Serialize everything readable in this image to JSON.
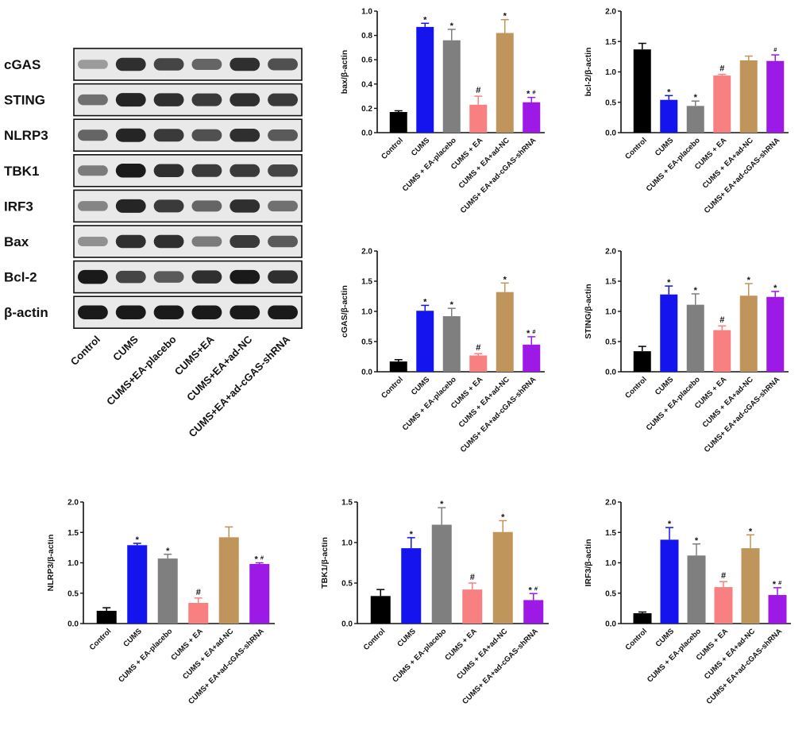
{
  "colors": {
    "Control": "#000000",
    "CUMS": "#1414ee",
    "CUMS+EA-placebo": "#7f7f7f",
    "CUMS+EA": "#f98080",
    "CUMS+EA+ad-NC": "#c0955c",
    "CUMS+EA+ad-cGAS-shRNA": "#9c19e6"
  },
  "blot": {
    "rows": [
      "cGAS",
      "STING",
      "NLRP3",
      "TBK1",
      "IRF3",
      "Bax",
      "Bcl-2",
      "β-actin"
    ],
    "lanes": [
      "Control",
      "CUMS",
      "CUMS+EA-placebo",
      "CUMS+EA",
      "CUMS+EA+ad-NC",
      "CUMS+EA+ad-cGAS-shRNA"
    ],
    "band_intensity": [
      [
        0.35,
        0.85,
        0.75,
        0.6,
        0.85,
        0.7
      ],
      [
        0.55,
        0.9,
        0.85,
        0.8,
        0.85,
        0.8
      ],
      [
        0.6,
        0.9,
        0.8,
        0.7,
        0.85,
        0.65
      ],
      [
        0.5,
        0.95,
        0.85,
        0.8,
        0.8,
        0.75
      ],
      [
        0.45,
        0.9,
        0.8,
        0.6,
        0.85,
        0.55
      ],
      [
        0.4,
        0.85,
        0.85,
        0.5,
        0.8,
        0.65
      ],
      [
        0.95,
        0.75,
        0.65,
        0.85,
        0.95,
        0.85
      ],
      [
        0.95,
        0.95,
        0.95,
        0.95,
        0.95,
        0.95
      ]
    ]
  },
  "chart_data": [
    {
      "type": "bar",
      "id": "bax",
      "ylabel": "bax/β-actin",
      "ylim": [
        0,
        1.0
      ],
      "yticks": [
        "0.0",
        "0.2",
        "0.4",
        "0.6",
        "0.8",
        "1.0"
      ],
      "categories": [
        "Control",
        "CUMS",
        "CUMS + EA-placebo",
        "CUMS + EA",
        "CUMS + EA+ad-NC",
        "CUMS+ EA+ad-cGAS-shRNA"
      ],
      "values": [
        0.17,
        0.87,
        0.76,
        0.23,
        0.82,
        0.25
      ],
      "errors": [
        0.01,
        0.03,
        0.09,
        0.07,
        0.11,
        0.04
      ],
      "annotations": [
        "",
        "*",
        "*",
        "#",
        "*",
        "*#"
      ]
    },
    {
      "type": "bar",
      "id": "bcl2",
      "ylabel": "bcl-2/β-actin",
      "ylim": [
        0,
        2.0
      ],
      "yticks": [
        "0.0",
        "0.5",
        "1.0",
        "1.5",
        "2.0"
      ],
      "categories": [
        "Control",
        "CUMS",
        "CUMS + EA-placebo",
        "CUMS + EA",
        "CUMS + EA+ad-NC",
        "CUMS+ EA+ad-cGAS-shRNA"
      ],
      "values": [
        1.37,
        0.54,
        0.44,
        0.94,
        1.19,
        1.18
      ],
      "errors": [
        0.1,
        0.07,
        0.08,
        0.02,
        0.07,
        0.1
      ],
      "annotations": [
        "",
        "*",
        "*",
        "#",
        "",
        "#"
      ]
    },
    {
      "type": "bar",
      "id": "cgas",
      "ylabel": "cGAS/β-actin",
      "ylim": [
        0,
        2.0
      ],
      "yticks": [
        "0.0",
        "0.5",
        "1.0",
        "1.5",
        "2.0"
      ],
      "categories": [
        "Control",
        "CUMS",
        "CUMS + EA-placebo",
        "CUMS + EA",
        "CUMS + EA+ad-NC",
        "CUMS+ EA+ad-cGAS-shRNA"
      ],
      "values": [
        0.17,
        1.01,
        0.92,
        0.27,
        1.32,
        0.45
      ],
      "errors": [
        0.03,
        0.09,
        0.13,
        0.03,
        0.15,
        0.13
      ],
      "annotations": [
        "",
        "*",
        "*",
        "#",
        "*",
        "*#"
      ]
    },
    {
      "type": "bar",
      "id": "sting",
      "ylabel": "STING/β-actin",
      "ylim": [
        0,
        2.0
      ],
      "yticks": [
        "0.0",
        "0.5",
        "1.0",
        "1.5",
        "2.0"
      ],
      "categories": [
        "Control",
        "CUMS",
        "CUMS + EA-placebo",
        "CUMS + EA",
        "CUMS + EA+ad-NC",
        "CUMS+ EA+ad-cGAS-shRNA"
      ],
      "values": [
        0.34,
        1.28,
        1.11,
        0.69,
        1.26,
        1.24
      ],
      "errors": [
        0.08,
        0.14,
        0.18,
        0.07,
        0.2,
        0.09
      ],
      "annotations": [
        "",
        "*",
        "*",
        "#",
        "*",
        "*"
      ]
    },
    {
      "type": "bar",
      "id": "nlrp3",
      "ylabel": "NLRP3/β-actin",
      "ylim": [
        0,
        2.0
      ],
      "yticks": [
        "0.0",
        "0.5",
        "1.0",
        "1.5",
        "2.0"
      ],
      "categories": [
        "Control",
        "CUMS",
        "CUMS + EA-placebo",
        "CUMS + EA",
        "CUMS + EA+ad-NC",
        "CUMS+ EA+ad-cGAS-shRNA"
      ],
      "values": [
        0.21,
        1.29,
        1.07,
        0.34,
        1.42,
        0.98
      ],
      "errors": [
        0.05,
        0.03,
        0.07,
        0.08,
        0.17,
        0.02
      ],
      "annotations": [
        "",
        "*",
        "*",
        "#",
        "",
        "*#"
      ]
    },
    {
      "type": "bar",
      "id": "tbk1",
      "ylabel": "TBK1/β-actin",
      "ylim": [
        0,
        1.5
      ],
      "yticks": [
        "0.0",
        "0.5",
        "1.0",
        "1.5"
      ],
      "categories": [
        "Control",
        "CUMS",
        "CUMS + EA-placebo",
        "CUMS + EA",
        "CUMS + EA+ad-NC",
        "CUMS+ EA+ad-cGAS-shRNA"
      ],
      "values": [
        0.34,
        0.93,
        1.22,
        0.42,
        1.13,
        0.29
      ],
      "errors": [
        0.08,
        0.13,
        0.21,
        0.08,
        0.14,
        0.08
      ],
      "annotations": [
        "",
        "*",
        "*",
        "#",
        "*",
        "*#"
      ]
    },
    {
      "type": "bar",
      "id": "irf3",
      "ylabel": "IRF3/β-actin",
      "ylim": [
        0,
        2.0
      ],
      "yticks": [
        "0.0",
        "0.5",
        "1.0",
        "1.5",
        "2.0"
      ],
      "categories": [
        "Control",
        "CUMS",
        "CUMS + EA-placebo",
        "CUMS + EA",
        "CUMS + EA+ad-NC",
        "CUMS+ EA+ad-cGAS-shRNA"
      ],
      "values": [
        0.17,
        1.38,
        1.12,
        0.6,
        1.24,
        0.47
      ],
      "errors": [
        0.02,
        0.2,
        0.19,
        0.09,
        0.22,
        0.12
      ],
      "annotations": [
        "",
        "*",
        "*",
        "#",
        "*",
        "*#"
      ]
    }
  ]
}
